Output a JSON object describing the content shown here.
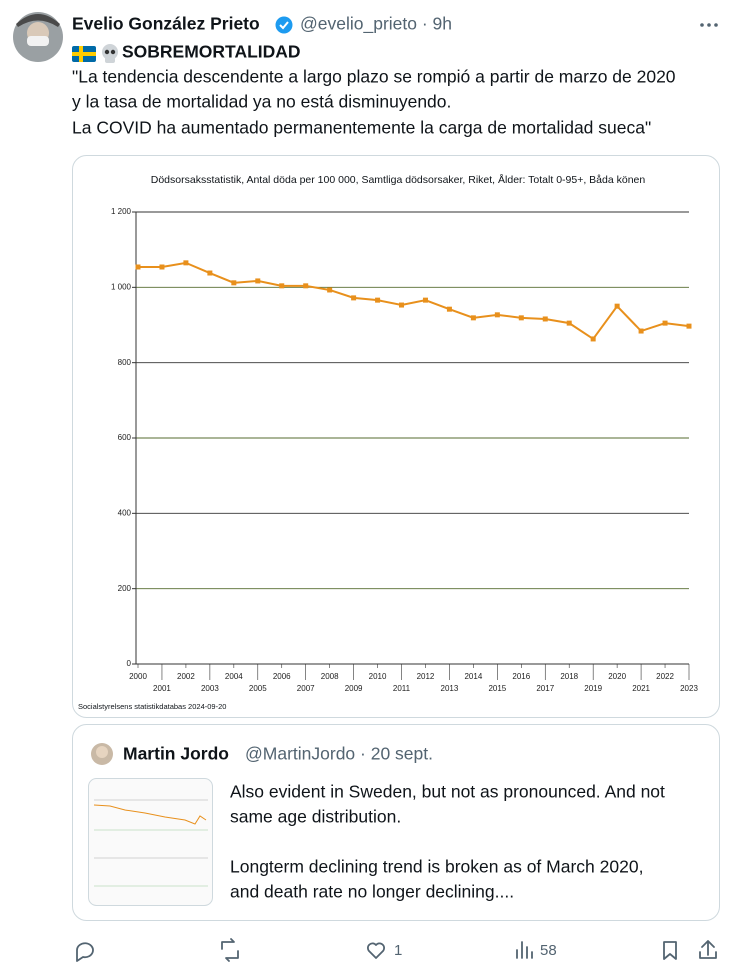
{
  "tweet": {
    "author_name": "Evelio González Prieto",
    "handle": "@evelio_prieto · 9h",
    "headline": "SOBREMORTALIDAD",
    "text_lines": [
      "\"La tendencia descendente a largo plazo se rompió a partir de marzo de 2020",
      "y la tasa de mortalidad ya no está disminuyendo.",
      "La COVID ha aumentado permanentemente la carga de mortalidad sueca\""
    ]
  },
  "chart_data": {
    "type": "line",
    "title": "Dödsorsaksstatistik, Antal döda per 100 000, Samtliga dödsorsaker, Riket, Ålder: Totalt 0-95+, Båda könen",
    "source": "Socialstyrelsens statistikdatabas 2024-09-20",
    "categories": [
      "2000",
      "2001",
      "2002",
      "2003",
      "2004",
      "2005",
      "2006",
      "2007",
      "2008",
      "2009",
      "2010",
      "2011",
      "2012",
      "2013",
      "2014",
      "2015",
      "2016",
      "2017",
      "2018",
      "2019",
      "2020",
      "2021",
      "2022",
      "2023"
    ],
    "series": [
      {
        "color": "#e8901c",
        "values": [
          1054,
          1054,
          1065,
          1038,
          1012,
          1017,
          1004,
          1004,
          993,
          972,
          966,
          953,
          966,
          942,
          919,
          927,
          919,
          916,
          905,
          863,
          950,
          884,
          905,
          897
        ]
      }
    ],
    "ylim": [
      0,
      1200
    ],
    "yticks": [
      0,
      200,
      400,
      600,
      800,
      {
        "value": 1000,
        "label": "1 000"
      },
      {
        "value": 1200,
        "label": "1 200"
      }
    ],
    "grid": true
  },
  "quoted": {
    "author_name": "Martin Jordo",
    "handle": "@MartinJordo · 20 sept.",
    "text_lines": [
      "Also evident in Sweden, but not as pronounced. And not",
      "same age distribution.",
      "Longterm declining trend is broken as of March 2020,",
      "and death rate no longer declining...."
    ]
  },
  "actions": {
    "likes": "1",
    "views": "58"
  }
}
